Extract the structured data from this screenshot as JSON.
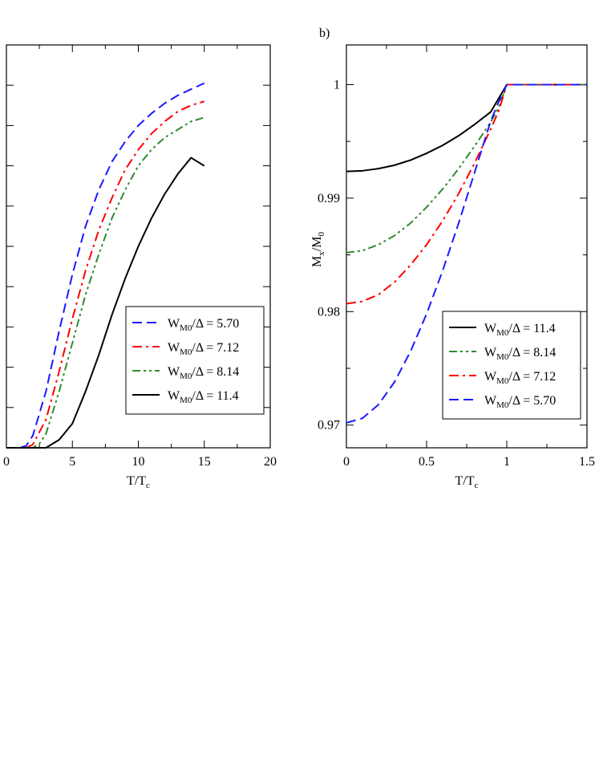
{
  "colors": {
    "blue": "#1a1aff",
    "red": "#ff0000",
    "green": "#2e8b2e",
    "black": "#000000"
  },
  "chart_data": [
    {
      "type": "line",
      "panel": "a",
      "xlabel": "T/T",
      "xlabel_sub": "c",
      "ylabel": "",
      "xlim": [
        0,
        20
      ],
      "ylim": [
        0,
        1
      ],
      "xticks": [
        0,
        5,
        10,
        15,
        20
      ],
      "xtick_labels": [
        "0",
        "5",
        "10",
        "15",
        "20"
      ],
      "ytick_count": 11,
      "legend": {
        "placement": "bottom-right"
      },
      "series": [
        {
          "name": "W",
          "sub": "M0",
          "label_rest": "/Δ = 5.70",
          "color": "blue",
          "dash": "long-dash",
          "x": [
            0,
            1,
            1.5,
            2,
            3,
            4,
            5,
            6,
            7,
            8,
            9,
            10,
            11,
            12,
            13,
            14,
            15
          ],
          "y": [
            0,
            0,
            0.005,
            0.03,
            0.14,
            0.29,
            0.43,
            0.55,
            0.64,
            0.71,
            0.76,
            0.8,
            0.83,
            0.855,
            0.875,
            0.89,
            0.905
          ]
        },
        {
          "name": "W",
          "sub": "M0",
          "label_rest": "/Δ = 7.12",
          "color": "red",
          "dash": "dash-dot",
          "x": [
            0,
            1.5,
            2,
            3,
            4,
            5,
            6,
            7,
            8,
            9,
            10,
            11,
            12,
            13,
            14,
            15
          ],
          "y": [
            0,
            0,
            0.008,
            0.07,
            0.19,
            0.32,
            0.44,
            0.54,
            0.62,
            0.69,
            0.74,
            0.78,
            0.81,
            0.835,
            0.85,
            0.86
          ]
        },
        {
          "name": "W",
          "sub": "M0",
          "label_rest": "/Δ = 8.14",
          "color": "green",
          "dash": "dash-dot-dot",
          "x": [
            0,
            2,
            2.5,
            3,
            4,
            5,
            6,
            7,
            8,
            9,
            10,
            11,
            12,
            13,
            14,
            15
          ],
          "y": [
            0,
            0,
            0.01,
            0.035,
            0.14,
            0.26,
            0.38,
            0.48,
            0.57,
            0.64,
            0.7,
            0.74,
            0.77,
            0.79,
            0.81,
            0.82
          ]
        },
        {
          "name": "W",
          "sub": "M0",
          "label_rest": "/Δ = 11.4",
          "color": "black",
          "dash": "solid",
          "x": [
            0,
            3,
            4,
            5,
            6,
            7,
            8,
            9,
            10,
            11,
            12,
            13,
            14,
            15
          ],
          "y": [
            0,
            0,
            0.02,
            0.06,
            0.14,
            0.23,
            0.33,
            0.42,
            0.5,
            0.57,
            0.63,
            0.68,
            0.72,
            0.7
          ]
        }
      ]
    },
    {
      "type": "line",
      "panel": "b",
      "panel_label": "b)",
      "xlabel": "T/T",
      "xlabel_sub": "c",
      "ylabel": "M",
      "ylabel_sub1": "x",
      "ylabel_mid": "/M",
      "ylabel_sub2": "0",
      "xlim": [
        0,
        1.5
      ],
      "ylim": [
        0.968,
        1.0035
      ],
      "xticks": [
        0,
        0.5,
        1,
        1.5
      ],
      "xtick_labels": [
        "0",
        "0.5",
        "1",
        "1.5"
      ],
      "yticks": [
        0.97,
        0.98,
        0.99,
        1.0
      ],
      "ytick_labels": [
        "0.97",
        "0.98",
        "0.99",
        "1"
      ],
      "legend": {
        "placement": "bottom-right"
      },
      "series": [
        {
          "name": "W",
          "sub": "M0",
          "label_rest": "/Δ = 11.4",
          "color": "black",
          "dash": "solid",
          "x": [
            0,
            0.1,
            0.2,
            0.3,
            0.4,
            0.5,
            0.6,
            0.7,
            0.8,
            0.9,
            1.0,
            1.5
          ],
          "y": [
            0.99235,
            0.99241,
            0.9926,
            0.9929,
            0.99335,
            0.99395,
            0.99465,
            0.9955,
            0.9965,
            0.9976,
            1.0,
            1.0
          ]
        },
        {
          "name": "W",
          "sub": "M0",
          "label_rest": "/Δ = 8.14",
          "color": "green",
          "dash": "dash-dot-dot",
          "x": [
            0,
            0.1,
            0.2,
            0.3,
            0.4,
            0.5,
            0.6,
            0.7,
            0.8,
            0.9,
            0.95,
            1.0,
            1.5
          ],
          "y": [
            0.9852,
            0.98537,
            0.9859,
            0.9867,
            0.9878,
            0.9892,
            0.9908,
            0.9926,
            0.9946,
            0.9967,
            0.998,
            1.0,
            1.0
          ]
        },
        {
          "name": "W",
          "sub": "M0",
          "label_rest": "/Δ = 7.12",
          "color": "red",
          "dash": "dash-dot",
          "x": [
            0,
            0.1,
            0.2,
            0.3,
            0.4,
            0.5,
            0.6,
            0.7,
            0.8,
            0.9,
            0.95,
            1.0,
            1.5
          ],
          "y": [
            0.9807,
            0.9809,
            0.9815,
            0.9826,
            0.9841,
            0.9859,
            0.988,
            0.9904,
            0.9931,
            0.9961,
            0.9977,
            1.0,
            1.0
          ]
        },
        {
          "name": "W",
          "sub": "M0",
          "label_rest": "/Δ = 5.70",
          "color": "blue",
          "dash": "long-dash",
          "x": [
            0,
            0.1,
            0.2,
            0.3,
            0.4,
            0.5,
            0.6,
            0.7,
            0.8,
            0.9,
            0.95,
            1.0,
            1.5
          ],
          "y": [
            0.9702,
            0.9706,
            0.9718,
            0.9738,
            0.9765,
            0.9798,
            0.9836,
            0.9878,
            0.9923,
            0.9968,
            0.9985,
            1.0,
            1.0
          ]
        }
      ]
    }
  ]
}
